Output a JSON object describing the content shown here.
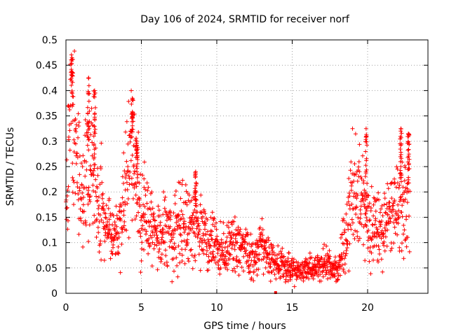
{
  "chart_data": {
    "type": "scatter",
    "title": "Day 106 of 2024, SRMTID for receiver norf",
    "xlabel": "GPS time / hours",
    "ylabel": "SRMTID / TECUs",
    "xlim": [
      0,
      24
    ],
    "ylim": [
      0,
      0.5
    ],
    "xticks": [
      0,
      5,
      10,
      15,
      20
    ],
    "xtick_labels": [
      "0",
      "5",
      "10",
      "15",
      "20"
    ],
    "yticks": [
      0,
      0.05,
      0.1,
      0.15,
      0.2,
      0.25,
      0.3,
      0.35,
      0.4,
      0.45,
      0.5
    ],
    "ytick_labels": [
      "0",
      "0.05",
      "0.1",
      "0.15",
      "0.2",
      "0.25",
      "0.3",
      "0.35",
      "0.4",
      "0.45",
      "0.5"
    ],
    "grid": true,
    "marker": "plus",
    "color": "#ff0000",
    "series": [
      {
        "name": "SRMTID",
        "envelope_x": [
          0,
          0.2,
          0.3,
          0.5,
          0.8,
          1.1,
          1.5,
          1.9,
          2.2,
          2.6,
          3.0,
          3.4,
          3.8,
          4.2,
          4.4,
          4.6,
          4.8,
          5.0,
          5.2,
          5.6,
          6.0,
          6.5,
          7.0,
          7.5,
          8.0,
          8.5,
          9.0,
          9.5,
          10.0,
          10.5,
          11.0,
          11.5,
          12.0,
          12.5,
          13.0,
          13.5,
          14.0,
          14.5,
          15.0,
          15.5,
          16.0,
          16.5,
          17.0,
          17.5,
          18.0,
          18.3,
          18.6,
          18.9,
          19.2,
          19.5,
          19.8,
          20.1,
          20.5,
          21.0,
          21.5,
          22.0,
          22.4,
          22.8
        ],
        "envelope_y": [
          0.17,
          0.3,
          0.42,
          0.3,
          0.25,
          0.2,
          0.26,
          0.24,
          0.18,
          0.16,
          0.11,
          0.13,
          0.17,
          0.26,
          0.31,
          0.24,
          0.21,
          0.13,
          0.15,
          0.14,
          0.12,
          0.13,
          0.12,
          0.14,
          0.15,
          0.14,
          0.12,
          0.1,
          0.09,
          0.08,
          0.1,
          0.09,
          0.08,
          0.07,
          0.1,
          0.07,
          0.06,
          0.05,
          0.05,
          0.04,
          0.05,
          0.05,
          0.06,
          0.05,
          0.05,
          0.08,
          0.12,
          0.17,
          0.22,
          0.2,
          0.16,
          0.13,
          0.12,
          0.13,
          0.15,
          0.16,
          0.17,
          0.22
        ],
        "peaks": [
          {
            "x": 0.4,
            "y": 0.465
          },
          {
            "x": 1.5,
            "y": 0.425
          },
          {
            "x": 1.9,
            "y": 0.4
          },
          {
            "x": 4.4,
            "y": 0.385
          },
          {
            "x": 4.7,
            "y": 0.3
          },
          {
            "x": 8.6,
            "y": 0.24
          },
          {
            "x": 19.9,
            "y": 0.325
          },
          {
            "x": 22.2,
            "y": 0.325
          },
          {
            "x": 22.7,
            "y": 0.315
          }
        ],
        "outliers": [
          {
            "x": 13.9,
            "y": 0.0
          }
        ]
      }
    ]
  }
}
